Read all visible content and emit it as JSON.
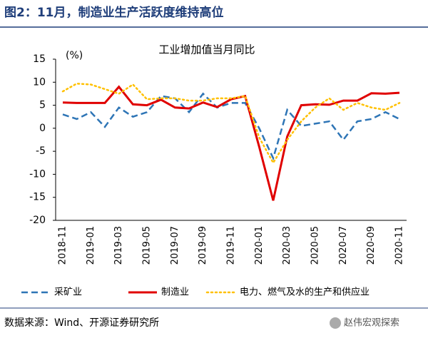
{
  "header": "图2：11月，制造业生产活跃度维持高位",
  "source": "数据来源：Wind、开源证券研究所",
  "watermark": "赵伟宏观探索",
  "chart_data": {
    "type": "line",
    "title": "工业增加值当月同比",
    "y_unit": "(%)",
    "categories": [
      "2018-11",
      null,
      "2019-01",
      null,
      "2019-03",
      null,
      "2019-05",
      null,
      "2019-07",
      null,
      "2019-09",
      null,
      "2019-11",
      null,
      "2020-01",
      null,
      "2020-03",
      null,
      "2020-05",
      null,
      "2020-07",
      null,
      "2020-09",
      null,
      "2020-11"
    ],
    "series": [
      {
        "name": "采矿业",
        "color": "#2e75b6",
        "dash": "dashed",
        "values": [
          3.0,
          2.0,
          3.5,
          0.3,
          4.5,
          2.5,
          3.5,
          7.0,
          6.5,
          3.5,
          7.5,
          4.5,
          5.5,
          5.5,
          0.0,
          -6.5,
          4.0,
          0.5,
          1.0,
          1.5,
          -2.5,
          1.5,
          2.0,
          3.5,
          2.0
        ]
      },
      {
        "name": "制造业",
        "color": "#e00000",
        "dash": "solid",
        "values": [
          5.6,
          5.5,
          5.5,
          5.5,
          9.0,
          5.2,
          5.0,
          6.2,
          4.5,
          4.3,
          5.6,
          4.6,
          6.3,
          7.0,
          -4.0,
          -15.7,
          -1.8,
          5.0,
          5.2,
          5.1,
          6.0,
          6.0,
          7.6,
          7.5,
          7.7
        ]
      },
      {
        "name": "电力、燃气及水的生产和供应业",
        "color": "#ffc000",
        "dash": "dotted",
        "values": [
          8.0,
          9.7,
          9.5,
          8.5,
          7.5,
          9.5,
          6.3,
          6.5,
          6.5,
          6.0,
          6.0,
          6.5,
          6.5,
          7.0,
          -2.0,
          -7.5,
          -2.5,
          1.5,
          4.5,
          6.5,
          4.0,
          5.5,
          4.5,
          4.0,
          5.5
        ]
      }
    ],
    "ylim": [
      -20,
      15
    ],
    "yticks": [
      -20,
      -15,
      -10,
      -5,
      0,
      5,
      10,
      15
    ],
    "grid": false,
    "legend": "bottom"
  }
}
